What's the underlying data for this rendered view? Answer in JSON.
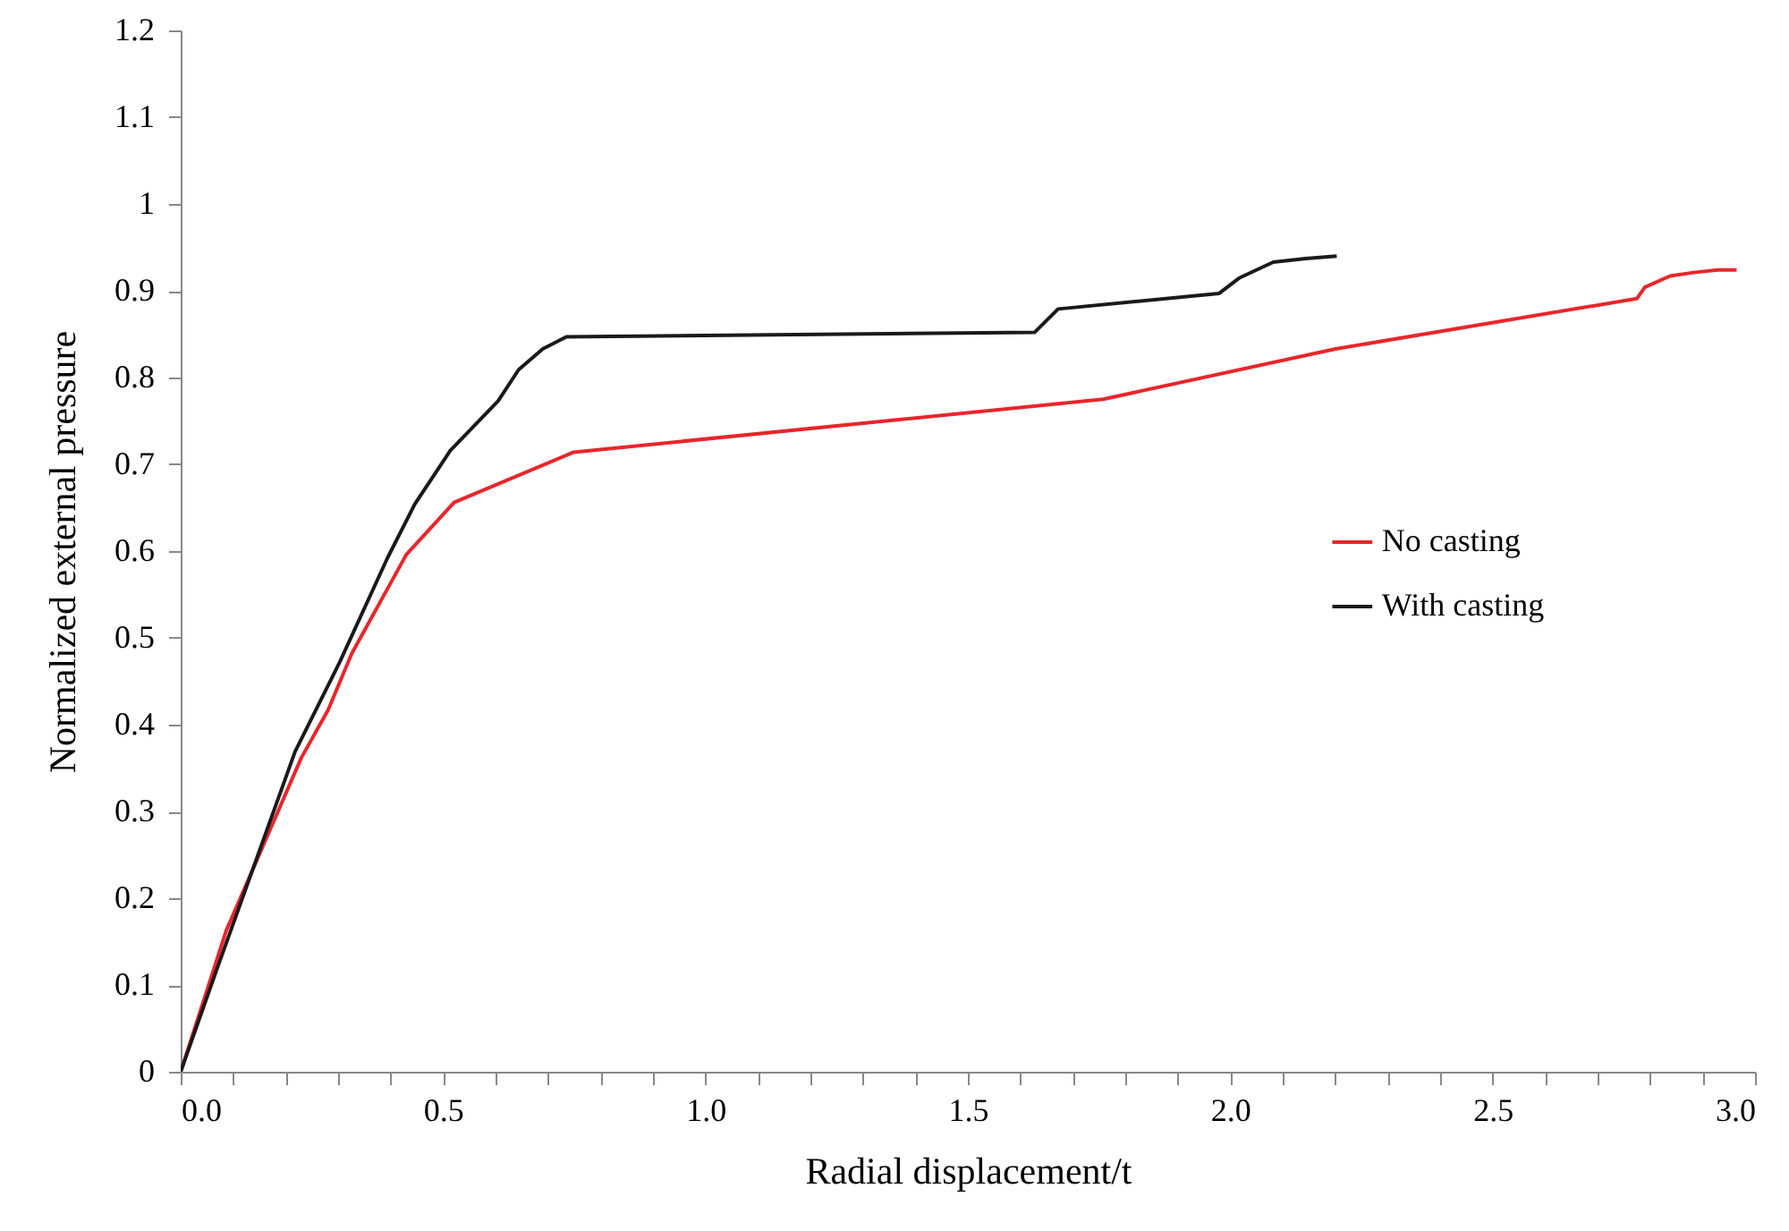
{
  "chart_data": {
    "type": "line",
    "xlabel": "Radial displacement/t",
    "ylabel": "Normalized external pressure",
    "xlim": [
      0,
      3
    ],
    "ylim": [
      0,
      1.2
    ],
    "xticks": [
      {
        "value": 0,
        "label": "0.0"
      },
      {
        "value": 0.1,
        "label": null
      },
      {
        "value": 0.2,
        "label": null
      },
      {
        "value": 0.3,
        "label": null
      },
      {
        "value": 0.4,
        "label": null
      },
      {
        "value": 0.5,
        "label": "0.5"
      },
      {
        "value": 0.6,
        "label": null
      },
      {
        "value": 0.7,
        "label": null
      },
      {
        "value": 0.8,
        "label": null
      },
      {
        "value": 0.9,
        "label": null
      },
      {
        "value": 1,
        "label": "1.0"
      },
      {
        "value": 1.1,
        "label": null
      },
      {
        "value": 1.2,
        "label": null
      },
      {
        "value": 1.3,
        "label": null
      },
      {
        "value": 1.4,
        "label": null
      },
      {
        "value": 1.5,
        "label": "1.5"
      },
      {
        "value": 1.6,
        "label": null
      },
      {
        "value": 1.7,
        "label": null
      },
      {
        "value": 1.8,
        "label": null
      },
      {
        "value": 1.9,
        "label": null
      },
      {
        "value": 2,
        "label": "2.0"
      },
      {
        "value": 2.1,
        "label": null
      },
      {
        "value": 2.2,
        "label": null
      },
      {
        "value": 2.3,
        "label": null
      },
      {
        "value": 2.4,
        "label": null
      },
      {
        "value": 2.5,
        "label": "2.5"
      },
      {
        "value": 2.6,
        "label": null
      },
      {
        "value": 2.7,
        "label": null
      },
      {
        "value": 2.8,
        "label": null
      },
      {
        "value": 2.9,
        "label": null
      },
      {
        "value": 3,
        "label": "3.0"
      }
    ],
    "yticks": [
      0,
      0.1,
      0.2,
      0.3,
      0.4,
      0.5,
      0.6,
      0.7,
      0.8,
      0.9,
      1,
      1.1,
      1.2
    ],
    "grid": false,
    "legend": "right",
    "marker": "none",
    "line_style": "solid",
    "series": [
      {
        "name": "No casting",
        "color": "#e8262b",
        "x": [
          0,
          0.087,
          0.23,
          0.281,
          0.326,
          0.43,
          0.521,
          0.749,
          1.758,
          2.201,
          2.775,
          2.79,
          2.838,
          2.883,
          2.929,
          2.965
        ],
        "values": [
          0,
          0.163,
          0.362,
          0.417,
          0.482,
          0.596,
          0.656,
          0.714,
          0.775,
          0.833,
          0.891,
          0.904,
          0.917,
          0.921,
          0.924,
          0.924
        ]
      },
      {
        "name": "With casting",
        "color": "#1a1a1a",
        "x": [
          0,
          0.07,
          0.218,
          0.303,
          0.394,
          0.446,
          0.514,
          0.605,
          0.644,
          0.69,
          0.735,
          1.627,
          1.672,
          1.979,
          2.018,
          2.082,
          2.144,
          2.203
        ],
        "values": [
          0,
          0.12,
          0.369,
          0.472,
          0.592,
          0.654,
          0.716,
          0.773,
          0.809,
          0.833,
          0.847,
          0.852,
          0.879,
          0.897,
          0.915,
          0.933,
          0.937,
          0.94
        ]
      }
    ]
  }
}
